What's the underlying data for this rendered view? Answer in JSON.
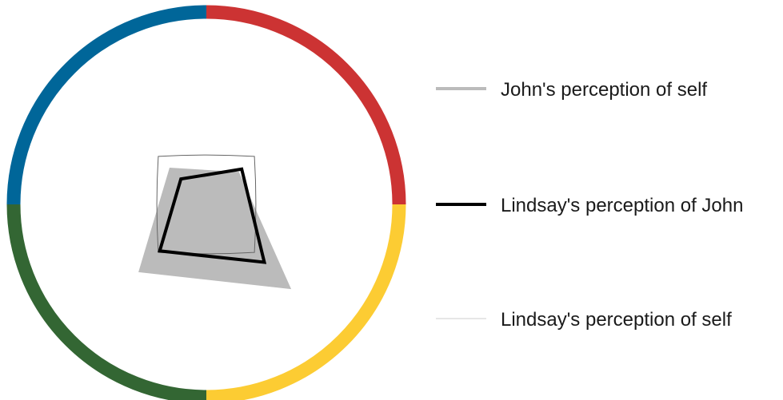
{
  "chart_data": {
    "type": "radar",
    "axes_count": 4,
    "quadrant_colors": [
      "#cc3333",
      "#fccc33",
      "#336633",
      "#006699"
    ],
    "value_range": [
      0,
      1
    ],
    "grid": false,
    "legend_position": "right",
    "series": [
      {
        "name": "John's perception of self",
        "values": [
          0.23,
          0.6,
          0.48,
          0.26
        ],
        "color": "#bbbbbb",
        "style": "filled"
      },
      {
        "name": "Lindsay's perception of John",
        "values": [
          0.25,
          0.41,
          0.33,
          0.18
        ],
        "color": "#000000",
        "style": "thick-line"
      },
      {
        "name": "Lindsay's perception of self",
        "values": [
          0.34,
          0.34,
          0.34,
          0.34
        ],
        "color": "#666666",
        "style": "thin-line"
      }
    ]
  }
}
